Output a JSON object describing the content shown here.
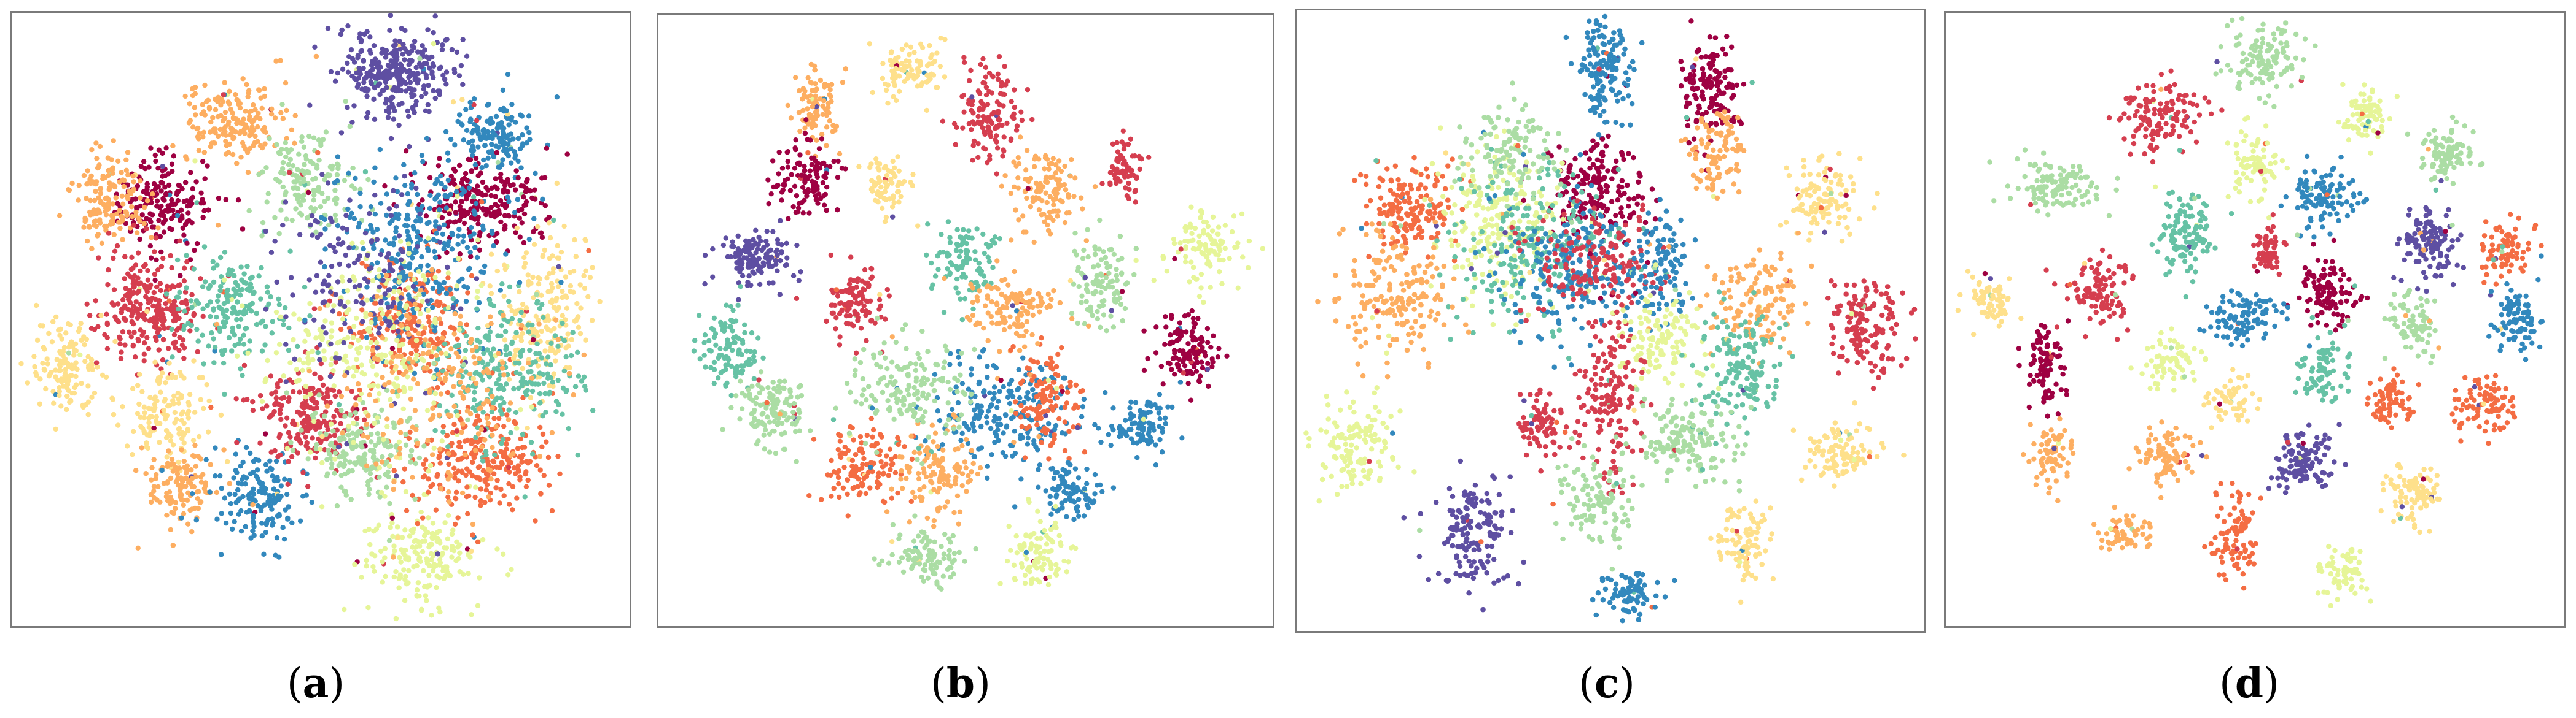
{
  "figure": {
    "captions": [
      "a",
      "b",
      "c",
      "d"
    ]
  },
  "palette": [
    "#9e0142",
    "#d53e4f",
    "#f46d43",
    "#fdae61",
    "#fee08b",
    "#e6f598",
    "#abdda4",
    "#66c2a5",
    "#3288bd",
    "#5e4fa2"
  ],
  "chart_data": [
    {
      "type": "scatter",
      "label": "a",
      "description_kind": "2-D embedding, ten class-colored point clouds",
      "clusters": [
        {
          "color": "#5e4fa2",
          "cx": 0.62,
          "cy": 0.1,
          "sx": 0.045,
          "sy": 0.035,
          "n": 320
        },
        {
          "color": "#3288bd",
          "cx": 0.78,
          "cy": 0.2,
          "sx": 0.035,
          "sy": 0.03,
          "n": 150
        },
        {
          "color": "#fdae61",
          "cx": 0.36,
          "cy": 0.18,
          "sx": 0.045,
          "sy": 0.035,
          "n": 180
        },
        {
          "color": "#9e0142",
          "cx": 0.25,
          "cy": 0.31,
          "sx": 0.04,
          "sy": 0.035,
          "n": 200
        },
        {
          "color": "#fdae61",
          "cx": 0.16,
          "cy": 0.3,
          "sx": 0.03,
          "sy": 0.04,
          "n": 150
        },
        {
          "color": "#d53e4f",
          "cx": 0.22,
          "cy": 0.48,
          "sx": 0.04,
          "sy": 0.045,
          "n": 260
        },
        {
          "color": "#fee08b",
          "cx": 0.09,
          "cy": 0.58,
          "sx": 0.03,
          "sy": 0.04,
          "n": 140
        },
        {
          "color": "#fee08b",
          "cx": 0.25,
          "cy": 0.65,
          "sx": 0.035,
          "sy": 0.035,
          "n": 140
        },
        {
          "color": "#fdae61",
          "cx": 0.27,
          "cy": 0.77,
          "sx": 0.03,
          "sy": 0.03,
          "n": 120
        },
        {
          "color": "#3288bd",
          "cx": 0.4,
          "cy": 0.79,
          "sx": 0.035,
          "sy": 0.04,
          "n": 160
        },
        {
          "color": "#d53e4f",
          "cx": 0.48,
          "cy": 0.66,
          "sx": 0.045,
          "sy": 0.04,
          "n": 220
        },
        {
          "color": "#e6f598",
          "cx": 0.67,
          "cy": 0.89,
          "sx": 0.05,
          "sy": 0.04,
          "n": 200
        },
        {
          "color": "#9e0142",
          "cx": 0.76,
          "cy": 0.31,
          "sx": 0.05,
          "sy": 0.035,
          "n": 240
        },
        {
          "color": "#66c2a5",
          "cx": 0.36,
          "cy": 0.48,
          "sx": 0.045,
          "sy": 0.045,
          "n": 180
        },
        {
          "color": "#abdda4",
          "cx": 0.48,
          "cy": 0.28,
          "sx": 0.04,
          "sy": 0.04,
          "n": 160
        },
        {
          "color": "#f46d43",
          "cx": 0.76,
          "cy": 0.73,
          "sx": 0.06,
          "sy": 0.05,
          "n": 260
        },
        {
          "color": "#f46d43",
          "cx": 0.64,
          "cy": 0.5,
          "sx": 0.05,
          "sy": 0.05,
          "n": 220
        },
        {
          "color": "#3288bd",
          "cx": 0.66,
          "cy": 0.38,
          "sx": 0.07,
          "sy": 0.08,
          "n": 300
        },
        {
          "color": "#abdda4",
          "cx": 0.56,
          "cy": 0.71,
          "sx": 0.045,
          "sy": 0.045,
          "n": 180
        },
        {
          "color": "#fee08b",
          "cx": 0.86,
          "cy": 0.48,
          "sx": 0.04,
          "sy": 0.06,
          "n": 200
        },
        {
          "color": "#66c2a5",
          "cx": 0.8,
          "cy": 0.58,
          "sx": 0.06,
          "sy": 0.06,
          "n": 260
        },
        {
          "color": "#e6f598",
          "cx": 0.58,
          "cy": 0.55,
          "sx": 0.08,
          "sy": 0.08,
          "n": 260
        },
        {
          "color": "#5e4fa2",
          "cx": 0.55,
          "cy": 0.44,
          "sx": 0.08,
          "sy": 0.08,
          "n": 160
        },
        {
          "color": "#fdae61",
          "cx": 0.7,
          "cy": 0.6,
          "sx": 0.08,
          "sy": 0.08,
          "n": 200
        }
      ]
    },
    {
      "type": "scatter",
      "label": "b",
      "description_kind": "2-D embedding, ten class-colored point clouds",
      "clusters": [
        {
          "color": "#fee08b",
          "cx": 0.41,
          "cy": 0.09,
          "sx": 0.03,
          "sy": 0.025,
          "n": 100
        },
        {
          "color": "#d53e4f",
          "cx": 0.54,
          "cy": 0.16,
          "sx": 0.025,
          "sy": 0.04,
          "n": 130
        },
        {
          "color": "#fdae61",
          "cx": 0.26,
          "cy": 0.15,
          "sx": 0.02,
          "sy": 0.035,
          "n": 90
        },
        {
          "color": "#9e0142",
          "cx": 0.24,
          "cy": 0.27,
          "sx": 0.025,
          "sy": 0.03,
          "n": 120
        },
        {
          "color": "#fee08b",
          "cx": 0.37,
          "cy": 0.28,
          "sx": 0.02,
          "sy": 0.025,
          "n": 70
        },
        {
          "color": "#d53e4f",
          "cx": 0.76,
          "cy": 0.25,
          "sx": 0.015,
          "sy": 0.025,
          "n": 70
        },
        {
          "color": "#fdae61",
          "cx": 0.63,
          "cy": 0.28,
          "sx": 0.03,
          "sy": 0.035,
          "n": 120
        },
        {
          "color": "#5e4fa2",
          "cx": 0.16,
          "cy": 0.4,
          "sx": 0.03,
          "sy": 0.025,
          "n": 140
        },
        {
          "color": "#66c2a5",
          "cx": 0.5,
          "cy": 0.4,
          "sx": 0.025,
          "sy": 0.03,
          "n": 100
        },
        {
          "color": "#abdda4",
          "cx": 0.72,
          "cy": 0.43,
          "sx": 0.025,
          "sy": 0.04,
          "n": 110
        },
        {
          "color": "#e6f598",
          "cx": 0.89,
          "cy": 0.38,
          "sx": 0.03,
          "sy": 0.03,
          "n": 110
        },
        {
          "color": "#d53e4f",
          "cx": 0.32,
          "cy": 0.47,
          "sx": 0.025,
          "sy": 0.03,
          "n": 110
        },
        {
          "color": "#fdae61",
          "cx": 0.57,
          "cy": 0.48,
          "sx": 0.035,
          "sy": 0.03,
          "n": 130
        },
        {
          "color": "#66c2a5",
          "cx": 0.12,
          "cy": 0.55,
          "sx": 0.025,
          "sy": 0.04,
          "n": 110
        },
        {
          "color": "#9e0142",
          "cx": 0.86,
          "cy": 0.55,
          "sx": 0.025,
          "sy": 0.03,
          "n": 130
        },
        {
          "color": "#abdda4",
          "cx": 0.18,
          "cy": 0.65,
          "sx": 0.03,
          "sy": 0.03,
          "n": 130
        },
        {
          "color": "#3288bd",
          "cx": 0.57,
          "cy": 0.65,
          "sx": 0.06,
          "sy": 0.045,
          "n": 220
        },
        {
          "color": "#f46d43",
          "cx": 0.63,
          "cy": 0.63,
          "sx": 0.03,
          "sy": 0.04,
          "n": 120
        },
        {
          "color": "#3288bd",
          "cx": 0.79,
          "cy": 0.67,
          "sx": 0.025,
          "sy": 0.025,
          "n": 100
        },
        {
          "color": "#f46d43",
          "cx": 0.34,
          "cy": 0.74,
          "sx": 0.035,
          "sy": 0.03,
          "n": 130
        },
        {
          "color": "#fdae61",
          "cx": 0.45,
          "cy": 0.75,
          "sx": 0.035,
          "sy": 0.035,
          "n": 120
        },
        {
          "color": "#abdda4",
          "cx": 0.41,
          "cy": 0.61,
          "sx": 0.05,
          "sy": 0.04,
          "n": 160
        },
        {
          "color": "#3288bd",
          "cx": 0.67,
          "cy": 0.78,
          "sx": 0.025,
          "sy": 0.02,
          "n": 90
        },
        {
          "color": "#abdda4",
          "cx": 0.44,
          "cy": 0.89,
          "sx": 0.03,
          "sy": 0.025,
          "n": 100
        },
        {
          "color": "#e6f598",
          "cx": 0.62,
          "cy": 0.88,
          "sx": 0.025,
          "sy": 0.03,
          "n": 100
        }
      ]
    },
    {
      "type": "scatter",
      "label": "c",
      "description_kind": "2-D embedding, ten class-colored point clouds",
      "clusters": [
        {
          "color": "#3288bd",
          "cx": 0.49,
          "cy": 0.1,
          "sx": 0.02,
          "sy": 0.05,
          "n": 150
        },
        {
          "color": "#9e0142",
          "cx": 0.66,
          "cy": 0.13,
          "sx": 0.025,
          "sy": 0.04,
          "n": 140
        },
        {
          "color": "#fdae61",
          "cx": 0.67,
          "cy": 0.23,
          "sx": 0.02,
          "sy": 0.04,
          "n": 100
        },
        {
          "color": "#fee08b",
          "cx": 0.84,
          "cy": 0.3,
          "sx": 0.03,
          "sy": 0.03,
          "n": 110
        },
        {
          "color": "#9e0142",
          "cx": 0.48,
          "cy": 0.29,
          "sx": 0.04,
          "sy": 0.04,
          "n": 180
        },
        {
          "color": "#f46d43",
          "cx": 0.18,
          "cy": 0.31,
          "sx": 0.04,
          "sy": 0.035,
          "n": 160
        },
        {
          "color": "#e6f598",
          "cx": 0.32,
          "cy": 0.33,
          "sx": 0.06,
          "sy": 0.06,
          "n": 220
        },
        {
          "color": "#66c2a5",
          "cx": 0.38,
          "cy": 0.38,
          "sx": 0.07,
          "sy": 0.06,
          "n": 220
        },
        {
          "color": "#3288bd",
          "cx": 0.44,
          "cy": 0.42,
          "sx": 0.06,
          "sy": 0.05,
          "n": 200
        },
        {
          "color": "#d53e4f",
          "cx": 0.48,
          "cy": 0.41,
          "sx": 0.05,
          "sy": 0.04,
          "n": 160
        },
        {
          "color": "#3288bd",
          "cx": 0.58,
          "cy": 0.42,
          "sx": 0.025,
          "sy": 0.04,
          "n": 110
        },
        {
          "color": "#fdae61",
          "cx": 0.73,
          "cy": 0.47,
          "sx": 0.035,
          "sy": 0.035,
          "n": 130
        },
        {
          "color": "#d53e4f",
          "cx": 0.9,
          "cy": 0.51,
          "sx": 0.03,
          "sy": 0.035,
          "n": 140
        },
        {
          "color": "#fdae61",
          "cx": 0.16,
          "cy": 0.46,
          "sx": 0.045,
          "sy": 0.05,
          "n": 180
        },
        {
          "color": "#e6f598",
          "cx": 0.58,
          "cy": 0.53,
          "sx": 0.03,
          "sy": 0.04,
          "n": 120
        },
        {
          "color": "#66c2a5",
          "cx": 0.71,
          "cy": 0.58,
          "sx": 0.035,
          "sy": 0.05,
          "n": 150
        },
        {
          "color": "#d53e4f",
          "cx": 0.5,
          "cy": 0.63,
          "sx": 0.025,
          "sy": 0.06,
          "n": 150
        },
        {
          "color": "#d53e4f",
          "cx": 0.39,
          "cy": 0.67,
          "sx": 0.02,
          "sy": 0.025,
          "n": 80
        },
        {
          "color": "#abdda4",
          "cx": 0.62,
          "cy": 0.69,
          "sx": 0.04,
          "sy": 0.035,
          "n": 150
        },
        {
          "color": "#e6f598",
          "cx": 0.1,
          "cy": 0.7,
          "sx": 0.035,
          "sy": 0.035,
          "n": 130
        },
        {
          "color": "#fee08b",
          "cx": 0.87,
          "cy": 0.71,
          "sx": 0.03,
          "sy": 0.025,
          "n": 100
        },
        {
          "color": "#abdda4",
          "cx": 0.48,
          "cy": 0.79,
          "sx": 0.03,
          "sy": 0.035,
          "n": 110
        },
        {
          "color": "#5e4fa2",
          "cx": 0.28,
          "cy": 0.84,
          "sx": 0.03,
          "sy": 0.045,
          "n": 150
        },
        {
          "color": "#fee08b",
          "cx": 0.71,
          "cy": 0.86,
          "sx": 0.02,
          "sy": 0.035,
          "n": 90
        },
        {
          "color": "#3288bd",
          "cx": 0.53,
          "cy": 0.94,
          "sx": 0.025,
          "sy": 0.018,
          "n": 80
        },
        {
          "color": "#abdda4",
          "cx": 0.34,
          "cy": 0.22,
          "sx": 0.04,
          "sy": 0.04,
          "n": 120
        }
      ]
    },
    {
      "type": "scatter",
      "label": "d",
      "description_kind": "2-D embedding, ten class-colored point clouds",
      "clusters": [
        {
          "color": "#abdda4",
          "cx": 0.51,
          "cy": 0.08,
          "sx": 0.03,
          "sy": 0.03,
          "n": 120
        },
        {
          "color": "#e6f598",
          "cx": 0.68,
          "cy": 0.17,
          "sx": 0.02,
          "sy": 0.025,
          "n": 80
        },
        {
          "color": "#d53e4f",
          "cx": 0.35,
          "cy": 0.17,
          "sx": 0.03,
          "sy": 0.03,
          "n": 130
        },
        {
          "color": "#abdda4",
          "cx": 0.81,
          "cy": 0.23,
          "sx": 0.025,
          "sy": 0.025,
          "n": 90
        },
        {
          "color": "#abdda4",
          "cx": 0.18,
          "cy": 0.28,
          "sx": 0.035,
          "sy": 0.025,
          "n": 120
        },
        {
          "color": "#e6f598",
          "cx": 0.5,
          "cy": 0.25,
          "sx": 0.02,
          "sy": 0.03,
          "n": 80
        },
        {
          "color": "#3288bd",
          "cx": 0.61,
          "cy": 0.3,
          "sx": 0.025,
          "sy": 0.025,
          "n": 110
        },
        {
          "color": "#66c2a5",
          "cx": 0.39,
          "cy": 0.36,
          "sx": 0.025,
          "sy": 0.035,
          "n": 120
        },
        {
          "color": "#5e4fa2",
          "cx": 0.78,
          "cy": 0.38,
          "sx": 0.025,
          "sy": 0.03,
          "n": 120
        },
        {
          "color": "#d53e4f",
          "cx": 0.52,
          "cy": 0.39,
          "sx": 0.015,
          "sy": 0.02,
          "n": 60
        },
        {
          "color": "#f46d43",
          "cx": 0.9,
          "cy": 0.39,
          "sx": 0.02,
          "sy": 0.025,
          "n": 80
        },
        {
          "color": "#d53e4f",
          "cx": 0.25,
          "cy": 0.45,
          "sx": 0.025,
          "sy": 0.03,
          "n": 110
        },
        {
          "color": "#9e0142",
          "cx": 0.62,
          "cy": 0.46,
          "sx": 0.022,
          "sy": 0.028,
          "n": 110
        },
        {
          "color": "#fee08b",
          "cx": 0.07,
          "cy": 0.47,
          "sx": 0.018,
          "sy": 0.022,
          "n": 70
        },
        {
          "color": "#3288bd",
          "cx": 0.48,
          "cy": 0.5,
          "sx": 0.03,
          "sy": 0.02,
          "n": 100
        },
        {
          "color": "#abdda4",
          "cx": 0.76,
          "cy": 0.51,
          "sx": 0.02,
          "sy": 0.025,
          "n": 70
        },
        {
          "color": "#3288bd",
          "cx": 0.92,
          "cy": 0.5,
          "sx": 0.02,
          "sy": 0.028,
          "n": 90
        },
        {
          "color": "#9e0142",
          "cx": 0.16,
          "cy": 0.58,
          "sx": 0.018,
          "sy": 0.03,
          "n": 90
        },
        {
          "color": "#e6f598",
          "cx": 0.36,
          "cy": 0.57,
          "sx": 0.02,
          "sy": 0.022,
          "n": 70
        },
        {
          "color": "#66c2a5",
          "cx": 0.61,
          "cy": 0.58,
          "sx": 0.02,
          "sy": 0.025,
          "n": 80
        },
        {
          "color": "#f46d43",
          "cx": 0.72,
          "cy": 0.63,
          "sx": 0.018,
          "sy": 0.022,
          "n": 70
        },
        {
          "color": "#f46d43",
          "cx": 0.87,
          "cy": 0.64,
          "sx": 0.025,
          "sy": 0.025,
          "n": 90
        },
        {
          "color": "#fee08b",
          "cx": 0.46,
          "cy": 0.63,
          "sx": 0.018,
          "sy": 0.02,
          "n": 60
        },
        {
          "color": "#fdae61",
          "cx": 0.17,
          "cy": 0.72,
          "sx": 0.015,
          "sy": 0.03,
          "n": 70
        },
        {
          "color": "#fdae61",
          "cx": 0.36,
          "cy": 0.72,
          "sx": 0.025,
          "sy": 0.022,
          "n": 90
        },
        {
          "color": "#5e4fa2",
          "cx": 0.58,
          "cy": 0.73,
          "sx": 0.025,
          "sy": 0.025,
          "n": 110
        },
        {
          "color": "#fee08b",
          "cx": 0.76,
          "cy": 0.78,
          "sx": 0.022,
          "sy": 0.028,
          "n": 90
        },
        {
          "color": "#fdae61",
          "cx": 0.29,
          "cy": 0.85,
          "sx": 0.02,
          "sy": 0.015,
          "n": 60
        },
        {
          "color": "#f46d43",
          "cx": 0.47,
          "cy": 0.85,
          "sx": 0.018,
          "sy": 0.035,
          "n": 90
        },
        {
          "color": "#e6f598",
          "cx": 0.64,
          "cy": 0.91,
          "sx": 0.02,
          "sy": 0.022,
          "n": 70
        }
      ]
    }
  ]
}
